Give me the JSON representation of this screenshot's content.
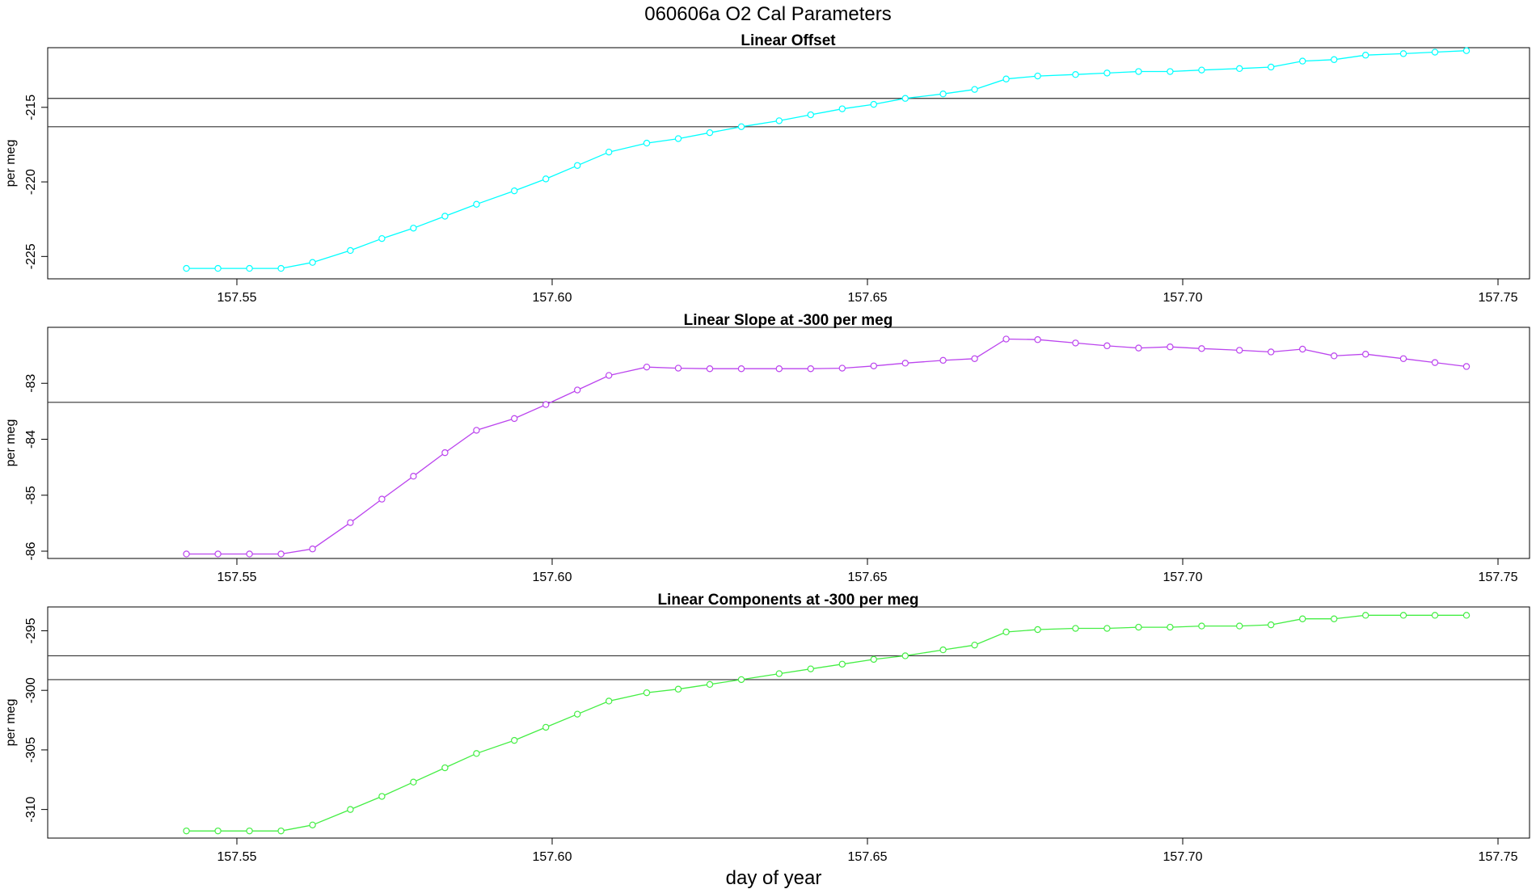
{
  "figure": {
    "title": "060606a   O2 Cal Parameters",
    "xlabel": "day of year"
  },
  "chart_data": [
    {
      "type": "line",
      "title": "Linear Offset",
      "ylabel": "per meg",
      "color": "#00ffff",
      "xlim": [
        157.52,
        157.755
      ],
      "ylim": [
        -226.5,
        -211.0
      ],
      "xticks": [
        "157.55",
        "157.60",
        "157.65",
        "157.70",
        "157.75"
      ],
      "yticks": [
        "-215",
        "-220",
        "-225"
      ],
      "hlines": [
        -214.4,
        -216.3
      ],
      "x": [
        157.542,
        157.547,
        157.552,
        157.557,
        157.562,
        157.568,
        157.573,
        157.578,
        157.583,
        157.588,
        157.594,
        157.599,
        157.604,
        157.609,
        157.615,
        157.62,
        157.625,
        157.63,
        157.636,
        157.641,
        157.646,
        157.651,
        157.656,
        157.662,
        157.667,
        157.672,
        157.677,
        157.683,
        157.688,
        157.693,
        157.698,
        157.703,
        157.709,
        157.714,
        157.719,
        157.724,
        157.729,
        157.735,
        157.74,
        157.745
      ],
      "y": [
        -225.8,
        -225.8,
        -225.8,
        -225.8,
        -225.4,
        -224.6,
        -223.8,
        -223.1,
        -222.3,
        -221.5,
        -220.6,
        -219.8,
        -218.9,
        -218.0,
        -217.4,
        -217.1,
        -216.7,
        -216.3,
        -215.9,
        -215.5,
        -215.1,
        -214.8,
        -214.4,
        -214.1,
        -213.8,
        -213.1,
        -212.9,
        -212.8,
        -212.7,
        -212.6,
        -212.6,
        -212.5,
        -212.4,
        -212.3,
        -211.9,
        -211.8,
        -211.5,
        -211.4,
        -211.3,
        -211.2
      ]
    },
    {
      "type": "line",
      "title": "Linear Slope at -300 per meg",
      "ylabel": "per meg",
      "color": "#bb44ee",
      "xlim": [
        157.52,
        157.755
      ],
      "ylim": [
        -86.13,
        -82.0
      ],
      "xticks": [
        "157.55",
        "157.60",
        "157.65",
        "157.70",
        "157.75"
      ],
      "yticks": [
        "-83",
        "-84",
        "-85",
        "-86"
      ],
      "hlines": [
        -83.34
      ],
      "x": [
        157.542,
        157.547,
        157.552,
        157.557,
        157.562,
        157.568,
        157.573,
        157.578,
        157.583,
        157.588,
        157.594,
        157.599,
        157.604,
        157.609,
        157.615,
        157.62,
        157.625,
        157.63,
        157.636,
        157.641,
        157.646,
        157.651,
        157.656,
        157.662,
        157.667,
        157.672,
        157.677,
        157.683,
        157.688,
        157.693,
        157.698,
        157.703,
        157.709,
        157.714,
        157.719,
        157.724,
        157.729,
        157.735,
        157.74,
        157.745
      ],
      "y": [
        -86.05,
        -86.05,
        -86.05,
        -86.05,
        -85.96,
        -85.49,
        -85.07,
        -84.66,
        -84.24,
        -83.84,
        -83.63,
        -83.38,
        -83.12,
        -82.86,
        -82.71,
        -82.73,
        -82.74,
        -82.74,
        -82.74,
        -82.74,
        -82.73,
        -82.69,
        -82.64,
        -82.59,
        -82.56,
        -82.21,
        -82.22,
        -82.28,
        -82.33,
        -82.37,
        -82.35,
        -82.38,
        -82.41,
        -82.44,
        -82.39,
        -82.51,
        -82.48,
        -82.56,
        -82.63,
        -82.7
      ]
    },
    {
      "type": "line",
      "title": "Linear Components at -300 per meg",
      "ylabel": "per meg",
      "color": "#44ee44",
      "xlim": [
        157.52,
        157.755
      ],
      "ylim": [
        -312.4,
        -293.0
      ],
      "xticks": [
        "157.55",
        "157.60",
        "157.65",
        "157.70",
        "157.75"
      ],
      "yticks": [
        "-295",
        "-300",
        "-305",
        "-310"
      ],
      "hlines": [
        -297.1,
        -299.1
      ],
      "x": [
        157.542,
        157.547,
        157.552,
        157.557,
        157.562,
        157.568,
        157.573,
        157.578,
        157.583,
        157.588,
        157.594,
        157.599,
        157.604,
        157.609,
        157.615,
        157.62,
        157.625,
        157.63,
        157.636,
        157.641,
        157.646,
        157.651,
        157.656,
        157.662,
        157.667,
        157.672,
        157.677,
        157.683,
        157.688,
        157.693,
        157.698,
        157.703,
        157.709,
        157.714,
        157.719,
        157.724,
        157.729,
        157.735,
        157.74,
        157.745
      ],
      "y": [
        -311.8,
        -311.8,
        -311.8,
        -311.8,
        -311.3,
        -310.0,
        -308.9,
        -307.7,
        -306.5,
        -305.3,
        -304.2,
        -303.1,
        -302.0,
        -300.9,
        -300.2,
        -299.9,
        -299.5,
        -299.1,
        -298.6,
        -298.2,
        -297.8,
        -297.4,
        -297.1,
        -296.6,
        -296.2,
        -295.1,
        -294.9,
        -294.8,
        -294.8,
        -294.7,
        -294.7,
        -294.6,
        -294.6,
        -294.5,
        -294.0,
        -294.0,
        -293.7,
        -293.7,
        -293.7,
        -293.7
      ]
    }
  ]
}
